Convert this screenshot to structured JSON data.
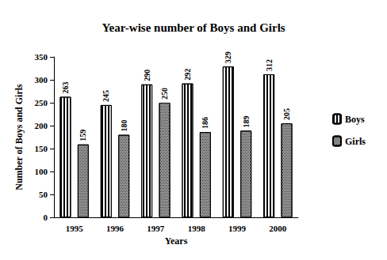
{
  "chart_data": {
    "type": "bar",
    "title": "Year-wise number of Boys and Girls",
    "x_label": "Years",
    "y_label": "Number of Boys and Girls",
    "categories": [
      "1995",
      "1996",
      "1997",
      "1998",
      "1999",
      "2000"
    ],
    "series": [
      {
        "name": "Boys",
        "color": "#ffffff",
        "values": [
          263,
          245,
          290,
          292,
          329,
          312
        ]
      },
      {
        "name": "Girls",
        "color": "#9a9a9a",
        "values": [
          159,
          180,
          250,
          186,
          189,
          205
        ]
      }
    ],
    "ylim": [
      0,
      350
    ],
    "yticks": [
      0,
      50,
      100,
      150,
      200,
      250,
      300,
      350
    ],
    "grid": false,
    "legend": "right",
    "data_labels": true
  }
}
